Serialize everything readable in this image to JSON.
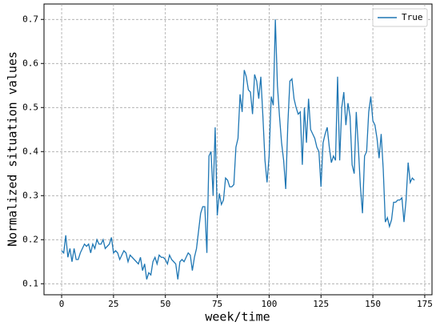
{
  "chart_data": {
    "type": "line",
    "xlabel": "week/time",
    "ylabel": "Normalized situation values",
    "x": [
      0,
      1,
      2,
      3,
      4,
      5,
      6,
      7,
      8,
      9,
      10,
      11,
      12,
      13,
      14,
      15,
      16,
      17,
      18,
      19,
      20,
      21,
      22,
      23,
      24,
      25,
      26,
      27,
      28,
      29,
      30,
      31,
      32,
      33,
      34,
      35,
      36,
      37,
      38,
      39,
      40,
      41,
      42,
      43,
      44,
      45,
      46,
      47,
      48,
      49,
      50,
      51,
      52,
      53,
      54,
      55,
      56,
      57,
      58,
      59,
      60,
      61,
      62,
      63,
      64,
      65,
      66,
      67,
      68,
      69,
      70,
      71,
      72,
      73,
      74,
      75,
      76,
      77,
      78,
      79,
      80,
      81,
      82,
      83,
      84,
      85,
      86,
      87,
      88,
      89,
      90,
      91,
      92,
      93,
      94,
      95,
      96,
      97,
      98,
      99,
      100,
      101,
      102,
      103,
      104,
      105,
      106,
      107,
      108,
      109,
      110,
      111,
      112,
      113,
      114,
      115,
      116,
      117,
      118,
      119,
      120,
      121,
      122,
      123,
      124,
      125,
      126,
      127,
      128,
      129,
      130,
      131,
      132,
      133,
      134,
      135,
      136,
      137,
      138,
      139,
      140,
      141,
      142,
      143,
      144,
      145,
      146,
      147,
      148,
      149,
      150,
      151,
      152,
      153,
      154,
      155,
      156,
      157,
      158,
      159,
      160,
      161,
      162,
      163,
      164,
      165,
      166,
      167,
      168,
      169,
      170
    ],
    "series": [
      {
        "name": "True",
        "color": "#1f77b4",
        "values": [
          0.175,
          0.17,
          0.21,
          0.16,
          0.18,
          0.15,
          0.18,
          0.155,
          0.155,
          0.17,
          0.18,
          0.19,
          0.185,
          0.19,
          0.17,
          0.19,
          0.18,
          0.2,
          0.19,
          0.19,
          0.2,
          0.18,
          0.185,
          0.19,
          0.205,
          0.17,
          0.175,
          0.17,
          0.155,
          0.165,
          0.175,
          0.17,
          0.15,
          0.165,
          0.16,
          0.155,
          0.15,
          0.145,
          0.16,
          0.13,
          0.145,
          0.11,
          0.125,
          0.12,
          0.15,
          0.16,
          0.145,
          0.165,
          0.16,
          0.16,
          0.155,
          0.145,
          0.165,
          0.155,
          0.15,
          0.145,
          0.11,
          0.15,
          0.155,
          0.15,
          0.16,
          0.17,
          0.165,
          0.13,
          0.16,
          0.18,
          0.22,
          0.26,
          0.275,
          0.275,
          0.17,
          0.39,
          0.4,
          0.3,
          0.455,
          0.255,
          0.305,
          0.28,
          0.29,
          0.34,
          0.335,
          0.32,
          0.32,
          0.325,
          0.41,
          0.43,
          0.53,
          0.49,
          0.585,
          0.57,
          0.54,
          0.535,
          0.485,
          0.575,
          0.56,
          0.52,
          0.57,
          0.48,
          0.38,
          0.33,
          0.39,
          0.525,
          0.505,
          0.7,
          0.55,
          0.48,
          0.42,
          0.38,
          0.315,
          0.46,
          0.56,
          0.565,
          0.52,
          0.5,
          0.485,
          0.49,
          0.37,
          0.5,
          0.42,
          0.52,
          0.45,
          0.44,
          0.43,
          0.41,
          0.4,
          0.32,
          0.42,
          0.44,
          0.455,
          0.41,
          0.375,
          0.39,
          0.38,
          0.57,
          0.38,
          0.5,
          0.535,
          0.46,
          0.51,
          0.48,
          0.37,
          0.35,
          0.49,
          0.41,
          0.32,
          0.26,
          0.39,
          0.4,
          0.49,
          0.525,
          0.47,
          0.46,
          0.43,
          0.385,
          0.44,
          0.36,
          0.24,
          0.25,
          0.23,
          0.245,
          0.285,
          0.285,
          0.29,
          0.29,
          0.295,
          0.24,
          0.29,
          0.375,
          0.33,
          0.34,
          0.335
        ]
      }
    ],
    "xlim": [
      -8.5,
      178.5
    ],
    "xticks": [
      0,
      25,
      50,
      75,
      100,
      125,
      150,
      175
    ],
    "ylim": [
      0.075,
      0.735
    ],
    "yticks": [
      0.1,
      0.2,
      0.3,
      0.4,
      0.5,
      0.6,
      0.7
    ],
    "grid": true,
    "legend": "upper right"
  }
}
